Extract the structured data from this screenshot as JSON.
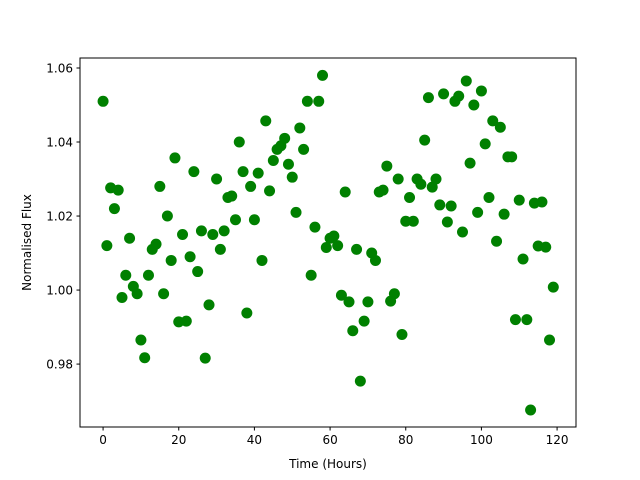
{
  "chart_data": {
    "type": "scatter",
    "title": "",
    "xlabel": "Time (Hours)",
    "ylabel": "Normalised Flux",
    "xlim": [
      -6.1,
      125
    ],
    "ylim": [
      0.963,
      1.0627
    ],
    "xticks": [
      0,
      20,
      40,
      60,
      80,
      100,
      120
    ],
    "xtick_labels": [
      "0",
      "20",
      "40",
      "60",
      "80",
      "100",
      "120"
    ],
    "yticks": [
      0.98,
      1.0,
      1.02,
      1.04,
      1.06
    ],
    "ytick_labels": [
      "0.98",
      "1.00",
      "1.02",
      "1.04",
      "1.06"
    ],
    "grid": false,
    "marker_color": "#008000",
    "x": [
      0,
      1,
      2,
      3,
      4,
      5,
      6,
      7,
      8,
      9,
      10,
      11,
      12,
      13,
      14,
      15,
      16,
      17,
      18,
      19,
      20,
      21,
      22,
      23,
      24,
      25,
      26,
      27,
      28,
      29,
      30,
      31,
      32,
      33,
      34,
      35,
      36,
      37,
      38,
      39,
      40,
      41,
      42,
      43,
      44,
      45,
      46,
      47,
      48,
      49,
      50,
      51,
      52,
      53,
      54,
      55,
      56,
      57,
      58,
      59,
      60,
      61,
      62,
      63,
      64,
      65,
      66,
      67,
      68,
      69,
      70,
      71,
      72,
      73,
      74,
      75,
      76,
      77,
      78,
      79,
      80,
      81,
      82,
      83,
      84,
      85,
      86,
      87,
      88,
      89,
      90,
      91,
      92,
      93,
      94,
      95,
      96,
      97,
      98,
      99,
      100,
      101,
      102,
      103,
      104,
      105,
      106,
      107,
      108,
      109,
      110,
      111,
      112,
      113,
      114,
      115,
      116,
      117,
      118,
      119
    ],
    "y": [
      1.051,
      1.012,
      1.0276,
      1.022,
      1.027,
      0.998,
      1.004,
      1.014,
      1.001,
      0.999,
      0.9865,
      0.9817,
      1.004,
      1.011,
      1.0124,
      1.028,
      0.999,
      1.02,
      1.008,
      1.0357,
      0.9914,
      1.015,
      0.9916,
      1.009,
      1.032,
      1.005,
      1.016,
      0.9816,
      0.996,
      1.015,
      1.03,
      1.011,
      1.016,
      1.025,
      1.0254,
      1.019,
      1.04,
      1.032,
      0.9938,
      1.028,
      1.019,
      1.0316,
      1.008,
      1.0457,
      1.0268,
      1.035,
      1.038,
      1.039,
      1.041,
      1.034,
      1.0305,
      1.021,
      1.0438,
      1.038,
      1.051,
      1.004,
      1.017,
      1.051,
      1.058,
      1.0115,
      1.014,
      1.0146,
      1.012,
      0.9986,
      1.0265,
      0.9968,
      0.989,
      1.011,
      0.9754,
      0.9916,
      0.9968,
      1.01,
      1.008,
      1.0265,
      1.027,
      1.0335,
      0.997,
      0.999,
      1.03,
      0.988,
      1.0186,
      1.025,
      1.0186,
      1.03,
      1.0286,
      1.0405,
      1.052,
      1.0278,
      1.03,
      1.023,
      1.053,
      1.0184,
      1.0227,
      1.051,
      1.0524,
      1.0157,
      1.0565,
      1.0343,
      1.05,
      1.021,
      1.0538,
      1.0395,
      1.025,
      1.0457,
      1.0132,
      1.044,
      1.0205,
      1.036,
      1.036,
      0.992,
      1.0243,
      1.0084,
      0.992,
      0.9676,
      1.0235,
      1.0119,
      1.0238,
      1.0116,
      0.9865,
      1.0008
    ]
  }
}
